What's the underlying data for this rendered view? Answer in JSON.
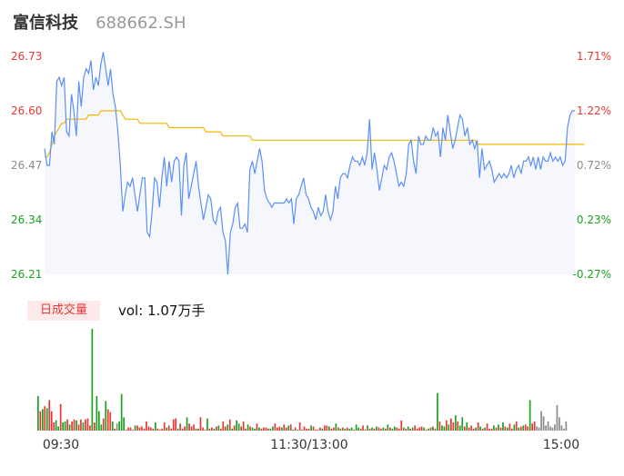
{
  "stock": {
    "name": "富信科技",
    "code": "688662.SH"
  },
  "volume_panel": {
    "tab_label": "日成交量",
    "vol_label": "vol: 1.07万手"
  },
  "colors": {
    "price_line": "#5b8ff9",
    "avg_line": "#f2b705",
    "up": "#e53935",
    "down": "#1aa321",
    "neutral": "#8c8c8c",
    "area_fill": "#f5f7fc"
  },
  "chart_data": {
    "type": "line",
    "title": "",
    "x_ticks": [
      "09:30",
      "11:30/13:00",
      "15:00"
    ],
    "y_ticks": [
      "26.73",
      "26.60",
      "26.47",
      "26.34",
      "26.21"
    ],
    "y2_ticks": [
      "1.71%",
      "1.22%",
      "0.72%",
      "0.23%",
      "-0.27%"
    ],
    "ylim": [
      26.21,
      26.73
    ],
    "y2lim": [
      -0.27,
      1.71
    ],
    "price": [
      26.51,
      26.47,
      26.47,
      26.55,
      26.52,
      26.67,
      26.68,
      26.66,
      26.68,
      26.55,
      26.54,
      26.64,
      26.6,
      26.54,
      26.67,
      26.61,
      26.68,
      26.7,
      26.69,
      26.72,
      26.65,
      26.68,
      26.66,
      26.71,
      26.74,
      26.7,
      26.66,
      26.7,
      26.64,
      26.61,
      26.55,
      26.47,
      26.36,
      26.4,
      26.43,
      26.42,
      26.44,
      26.4,
      26.36,
      26.4,
      26.44,
      26.44,
      26.31,
      26.3,
      26.36,
      26.44,
      26.43,
      26.37,
      26.44,
      26.49,
      26.42,
      26.48,
      26.43,
      26.48,
      26.49,
      26.48,
      26.35,
      26.47,
      26.5,
      26.39,
      26.42,
      26.45,
      26.48,
      26.42,
      26.38,
      26.34,
      26.37,
      26.4,
      26.39,
      26.34,
      26.33,
      26.36,
      26.37,
      26.31,
      26.29,
      26.21,
      26.31,
      26.33,
      26.37,
      26.38,
      26.32,
      26.32,
      26.33,
      26.31,
      26.46,
      26.48,
      26.45,
      26.48,
      26.51,
      26.48,
      26.41,
      26.39,
      26.38,
      26.37,
      26.38,
      26.38,
      26.38,
      26.38,
      26.38,
      26.39,
      26.38,
      26.39,
      26.33,
      26.39,
      26.4,
      26.42,
      26.44,
      26.4,
      26.39,
      26.37,
      26.36,
      26.34,
      26.37,
      26.35,
      26.36,
      26.4,
      26.36,
      26.34,
      26.36,
      26.42,
      26.39,
      26.44,
      26.45,
      26.45,
      26.44,
      26.47,
      26.49,
      26.48,
      26.48,
      26.47,
      26.49,
      26.47,
      26.5,
      26.58,
      26.46,
      26.5,
      26.46,
      26.41,
      26.44,
      26.47,
      26.46,
      26.49,
      26.5,
      26.48,
      26.45,
      26.42,
      26.43,
      26.42,
      26.45,
      26.52,
      26.53,
      26.48,
      26.45,
      26.54,
      26.52,
      26.52,
      26.54,
      26.53,
      26.53,
      26.56,
      26.54,
      26.55,
      26.49,
      26.56,
      26.53,
      26.59,
      26.55,
      26.51,
      26.53,
      26.56,
      26.59,
      26.58,
      26.54,
      26.56,
      26.52,
      26.53,
      26.51,
      26.53,
      26.44,
      26.51,
      26.46,
      26.47,
      26.48,
      26.46,
      26.43,
      26.44,
      26.45,
      26.44,
      26.45,
      26.44,
      26.45,
      26.47,
      26.44,
      26.46,
      26.47,
      26.45,
      26.48,
      26.48,
      26.49,
      26.47,
      26.49,
      26.46,
      26.49,
      26.46,
      26.49,
      26.48,
      26.48,
      26.5,
      26.48,
      26.49,
      26.48,
      26.49,
      26.47,
      26.48,
      26.56,
      26.59,
      26.6,
      26.6
    ],
    "avg_price": [
      26.49,
      26.49,
      26.5,
      26.52,
      26.54,
      26.55,
      26.56,
      26.57,
      26.57,
      26.58,
      26.58,
      26.58,
      26.58,
      26.58,
      26.58,
      26.58,
      26.58,
      26.58,
      26.59,
      26.59,
      26.59,
      26.59,
      26.59,
      26.6,
      26.6,
      26.6,
      26.6,
      26.6,
      26.6,
      26.6,
      26.6,
      26.6,
      26.59,
      26.58,
      26.58,
      26.58,
      26.58,
      26.58,
      26.58,
      26.57,
      26.57,
      26.57,
      26.57,
      26.57,
      26.57,
      26.57,
      26.57,
      26.57,
      26.57,
      26.57,
      26.57,
      26.56,
      26.56,
      26.56,
      26.56,
      26.56,
      26.56,
      26.56,
      26.56,
      26.56,
      26.56,
      26.56,
      26.56,
      26.56,
      26.56,
      26.56,
      26.55,
      26.55,
      26.55,
      26.55,
      26.55,
      26.55,
      26.55,
      26.54,
      26.54,
      26.54,
      26.54,
      26.54,
      26.54,
      26.54,
      26.54,
      26.54,
      26.54,
      26.54,
      26.54,
      26.53,
      26.53,
      26.53,
      26.53,
      26.53,
      26.53,
      26.53,
      26.53,
      26.53,
      26.53,
      26.53,
      26.53,
      26.53,
      26.53,
      26.53,
      26.53,
      26.53,
      26.53,
      26.53,
      26.53,
      26.53,
      26.53,
      26.53,
      26.53,
      26.53,
      26.53,
      26.53,
      26.53,
      26.53,
      26.53,
      26.53,
      26.53,
      26.53,
      26.53,
      26.53,
      26.53,
      26.53,
      26.53,
      26.53,
      26.53,
      26.53,
      26.53,
      26.53,
      26.53,
      26.53,
      26.53,
      26.53,
      26.53,
      26.53,
      26.53,
      26.53,
      26.53,
      26.53,
      26.53,
      26.53,
      26.53,
      26.53,
      26.53,
      26.53,
      26.53,
      26.53,
      26.53,
      26.53,
      26.53,
      26.53,
      26.53,
      26.53,
      26.53,
      26.53,
      26.53,
      26.53,
      26.53,
      26.53,
      26.53,
      26.53,
      26.53,
      26.53,
      26.53,
      26.53,
      26.53,
      26.53,
      26.53,
      26.53,
      26.53,
      26.53,
      26.53,
      26.53,
      26.53,
      26.53,
      26.53,
      26.53,
      26.53,
      26.52,
      26.52,
      26.52,
      26.52,
      26.52,
      26.52,
      26.52,
      26.52,
      26.52,
      26.52,
      26.52,
      26.52,
      26.52,
      26.52,
      26.52,
      26.52,
      26.52,
      26.52,
      26.52,
      26.52,
      26.52,
      26.52,
      26.52,
      26.52,
      26.52,
      26.52,
      26.52,
      26.52,
      26.52,
      26.52,
      26.52,
      26.52,
      26.52,
      26.52,
      26.52,
      26.52,
      26.52,
      26.52,
      26.52,
      26.52,
      26.52,
      26.52,
      26.52,
      26.52,
      26.52
    ],
    "volume_colors": [
      "d",
      "r",
      "d",
      "r",
      "d",
      "r",
      "r",
      "r",
      "d",
      "d",
      "r",
      "d",
      "d",
      "r",
      "d",
      "r",
      "r",
      "d",
      "r",
      "r",
      "d",
      "r",
      "r",
      "r",
      "d",
      "r",
      "d",
      "d",
      "d",
      "r",
      "d",
      "r",
      "r",
      "d",
      "r",
      "n",
      "d",
      "d",
      "d",
      "r",
      "r",
      "r",
      "r",
      "d",
      "r",
      "r",
      "r",
      "r",
      "r",
      "r",
      "r",
      "r",
      "d",
      "r",
      "r",
      "r",
      "r",
      "d",
      "r",
      "r",
      "r",
      "r",
      "d",
      "r",
      "r",
      "r",
      "d",
      "r",
      "r",
      "r",
      "d",
      "r",
      "r",
      "r",
      "r",
      "d",
      "r",
      "r",
      "d",
      "r",
      "d",
      "r",
      "r",
      "r",
      "d",
      "r",
      "d",
      "r",
      "d",
      "d",
      "r",
      "r",
      "r",
      "d",
      "r",
      "d",
      "d",
      "r",
      "d",
      "r",
      "r",
      "r",
      "r",
      "d",
      "d",
      "r",
      "r",
      "r",
      "d",
      "r",
      "r",
      "d",
      "r",
      "d",
      "r",
      "d",
      "r",
      "d",
      "r",
      "r",
      "r",
      "d",
      "r",
      "r",
      "r",
      "r",
      "d",
      "r",
      "r",
      "d",
      "r",
      "r",
      "d",
      "r",
      "d",
      "r",
      "d",
      "r",
      "d",
      "d",
      "r",
      "d",
      "d",
      "r",
      "r",
      "r",
      "d",
      "r",
      "d",
      "r",
      "d",
      "r",
      "r",
      "d",
      "r",
      "d",
      "r",
      "d",
      "d",
      "r",
      "r",
      "r",
      "d",
      "r",
      "d",
      "r",
      "d",
      "r",
      "r",
      "r",
      "r",
      "d",
      "r",
      "d",
      "r",
      "d",
      "r",
      "d",
      "r",
      "d",
      "d",
      "r",
      "d",
      "r",
      "r",
      "d",
      "r",
      "d",
      "d",
      "r",
      "d",
      "r",
      "r",
      "r",
      "d",
      "r",
      "d",
      "r",
      "d",
      "r",
      "r",
      "r",
      "d",
      "r",
      "d",
      "r",
      "d",
      "r",
      "d",
      "r",
      "r",
      "d",
      "r",
      "d",
      "r",
      "d",
      "r",
      "r",
      "d",
      "r",
      "r"
    ],
    "volume_values": [
      0.34,
      0.19,
      0.21,
      0.24,
      0.22,
      0.3,
      0.19,
      0.08,
      0.1,
      0.04,
      0.26,
      0.08,
      0.09,
      0.11,
      0.06,
      0.09,
      0.11,
      0.1,
      0.06,
      0.11,
      0.08,
      0.11,
      0.12,
      0.05,
      1.0,
      0.08,
      0.34,
      0.19,
      0.06,
      0.12,
      0.29,
      0.21,
      0.18,
      0.09,
      0.02,
      0.07,
      0.09,
      0.36,
      0.13,
      0.01,
      0.03,
      0.03,
      0.01,
      0.05,
      0.05,
      0.03,
      0.04,
      0.02,
      0.09,
      0.04,
      0.03,
      0.02,
      0.08,
      0.02,
      0.01,
      0.02,
      0.08,
      0.03,
      0.05,
      0.02,
      0.11,
      0.12,
      0.02,
      0.07,
      0.02,
      0.04,
      0.13,
      0.07,
      0.04,
      0.06,
      0.02,
      0.02,
      0.13,
      0.03,
      0.01,
      0.12,
      0.02,
      0.03,
      0.02,
      0.04,
      0.05,
      0.02,
      0.09,
      0.04,
      0.06,
      0.11,
      0.02,
      0.05,
      0.1,
      0.07,
      0.04,
      0.09,
      0.02,
      0.06,
      0.04,
      0.03,
      0.02,
      0.07,
      0.03,
      0.02,
      0.03,
      0.03,
      0.02,
      0.02,
      0.04,
      0.07,
      0.03,
      0.04,
      0.03,
      0.06,
      0.03,
      0.05,
      0.06,
      0.01,
      0.03,
      0.01,
      0.08,
      0.01,
      0.04,
      0.02,
      0.02,
      0.05,
      0.04,
      0.01,
      0.01,
      0.03,
      0.02,
      0.05,
      0.05,
      0.04,
      0.02,
      0.03,
      0.07,
      0.03,
      0.02,
      0.03,
      0.02,
      0.03,
      0.02,
      0.03,
      0.01,
      0.06,
      0.03,
      0.02,
      0.05,
      0.01,
      0.05,
      0.02,
      0.03,
      0.02,
      0.04,
      0.03,
      0.02,
      0.03,
      0.02,
      0.06,
      0.03,
      0.02,
      0.04,
      0.03,
      0.02,
      0.1,
      0.03,
      0.02,
      0.04,
      0.02,
      0.03,
      0.05,
      0.02,
      0.03,
      0.04,
      0.03,
      0.01,
      0.02,
      0.03,
      0.04,
      0.02,
      0.37,
      0.09,
      0.05,
      0.04,
      0.1,
      0.06,
      0.12,
      0.08,
      0.15,
      0.09,
      0.05,
      0.13,
      0.04,
      0.08,
      0.03,
      0.05,
      0.02,
      0.03,
      0.08,
      0.04,
      0.02,
      0.03,
      0.07,
      0.02,
      0.02,
      0.05,
      0.03,
      0.06,
      0.03,
      0.08,
      0.04,
      0.03,
      0.07,
      0.02,
      0.06,
      0.09,
      0.03,
      0.04,
      0.05,
      0.06,
      0.04,
      0.3,
      0.07,
      0.09,
      0.04,
      0.03,
      0.19,
      0.14,
      0.05,
      0.09,
      0.04,
      0.03,
      0.06,
      0.25,
      0.13,
      0.05,
      0.02,
      0.09
    ]
  }
}
